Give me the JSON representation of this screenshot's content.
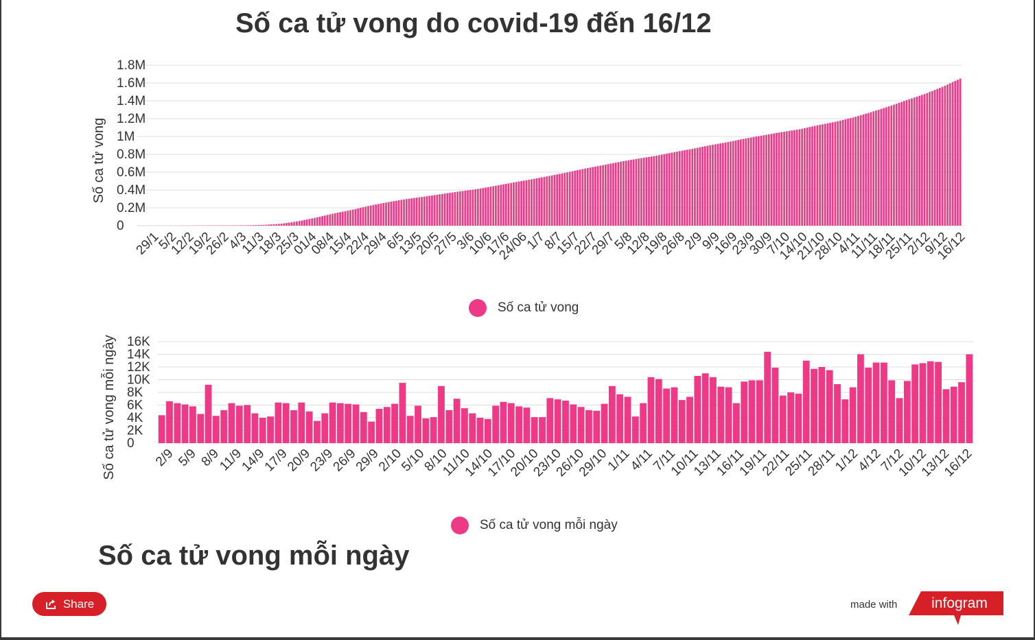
{
  "title": "Số ca tử vong do covid-19 đến 16/12",
  "section_title": "Số ca tử vong mỗi ngày",
  "footer": {
    "share_label": "Share",
    "made_with": "made with",
    "brand": "infogram"
  },
  "colors": {
    "bar": "#ee3a86",
    "grid": "#dddddd",
    "text": "#333333",
    "brand_red": "#d61f26"
  },
  "icons": [
    "share-icon",
    "infogram-logo"
  ],
  "chart_data": [
    {
      "type": "bar",
      "ylabel": "Số ca tử vong",
      "legend": [
        "Số ca tử vong"
      ],
      "legend_position": "bottom",
      "grid": true,
      "ylim": [
        0,
        1800000
      ],
      "yticks": [
        "0",
        "0.2M",
        "0.4M",
        "0.6M",
        "0.8M",
        "1M",
        "1.2M",
        "1.4M",
        "1.6M",
        "1.8M"
      ],
      "xticks": [
        "29/1",
        "5/2",
        "12/2",
        "19/2",
        "26/2",
        "4/3",
        "11/3",
        "18/3",
        "25/3",
        "01/4",
        "08/4",
        "15/4",
        "22/4",
        "29/4",
        "6/5",
        "13/5",
        "20/5",
        "27/5",
        "3/6",
        "10/6",
        "17/6",
        "24/06",
        "1/7",
        "8/7",
        "15/7",
        "22/7",
        "29/7",
        "5/8",
        "12/8",
        "19/8",
        "26/8",
        "2/9",
        "9/9",
        "16/9",
        "23/9",
        "30/9",
        "7/10",
        "14/10",
        "21/10",
        "28/10",
        "4/11",
        "11/11",
        "18/11",
        "25/11",
        "2/12",
        "9/12",
        "16/12"
      ],
      "series": [
        {
          "name": "Số ca tử vong",
          "x": [
            "29/1",
            "5/2",
            "12/2",
            "19/2",
            "26/2",
            "4/3",
            "11/3",
            "18/3",
            "25/3",
            "01/4",
            "08/4",
            "15/4",
            "22/4",
            "29/4",
            "6/5",
            "13/5",
            "20/5",
            "27/5",
            "3/6",
            "10/6",
            "17/6",
            "24/06",
            "1/7",
            "8/7",
            "15/7",
            "22/7",
            "29/7",
            "5/8",
            "12/8",
            "19/8",
            "26/8",
            "2/9",
            "9/9",
            "16/9",
            "23/9",
            "30/9",
            "7/10",
            "14/10",
            "21/10",
            "28/10",
            "4/11",
            "11/11",
            "18/11",
            "25/11",
            "2/12",
            "9/12",
            "16/12"
          ],
          "values": [
            200,
            500,
            1100,
            2100,
            2800,
            3300,
            4600,
            9000,
            22000,
            52000,
            94000,
            140000,
            180000,
            227000,
            265000,
            299000,
            326000,
            356000,
            385000,
            412000,
            448000,
            485000,
            520000,
            558000,
            598000,
            641000,
            679000,
            718000,
            753000,
            785000,
            825000,
            862000,
            902000,
            938000,
            979000,
            1014000,
            1050000,
            1081000,
            1125000,
            1165000,
            1213000,
            1273000,
            1337000,
            1408000,
            1476000,
            1557000,
            1650000
          ]
        }
      ]
    },
    {
      "type": "bar",
      "ylabel": "Số ca tử vong mỗi ngày",
      "legend": [
        "Số ca tử vong mỗi ngày"
      ],
      "legend_position": "bottom",
      "grid": true,
      "ylim": [
        0,
        16000
      ],
      "yticks": [
        "0",
        "2K",
        "4K",
        "6K",
        "8K",
        "10K",
        "12K",
        "14K",
        "16K"
      ],
      "xticks": [
        "2/9",
        "5/9",
        "8/9",
        "11/9",
        "14/9",
        "17/9",
        "20/9",
        "23/9",
        "26/9",
        "29/9",
        "2/10",
        "5/10",
        "8/10",
        "11/10",
        "14/10",
        "17/10",
        "20/10",
        "23/10",
        "26/10",
        "29/10",
        "1/11",
        "4/11",
        "7/11",
        "10/11",
        "13/11",
        "16/11",
        "19/11",
        "22/11",
        "25/11",
        "28/11",
        "1/12",
        "4/12",
        "7/12",
        "10/12",
        "13/12",
        "16/12"
      ],
      "series": [
        {
          "name": "Số ca tử vong mỗi ngày",
          "x_start": "1/9",
          "x_end": "16/12",
          "values": [
            4400,
            6600,
            6300,
            6100,
            5800,
            4600,
            9200,
            4300,
            5200,
            6300,
            5900,
            6000,
            4700,
            4000,
            4200,
            6400,
            6300,
            5200,
            6400,
            5000,
            3500,
            4700,
            6400,
            6300,
            6200,
            6100,
            4900,
            3400,
            5400,
            5700,
            6200,
            9500,
            4300,
            5900,
            3900,
            4100,
            9000,
            5200,
            7000,
            5500,
            4700,
            4000,
            3800,
            5900,
            6500,
            6300,
            5800,
            5600,
            4100,
            4100,
            7100,
            6900,
            6700,
            6100,
            5700,
            5200,
            5100,
            6200,
            9000,
            7700,
            7300,
            4200,
            6300,
            10400,
            10100,
            8600,
            8800,
            6800,
            7300,
            10600,
            11000,
            10400,
            8900,
            8800,
            6300,
            9700,
            9900,
            9900,
            14400,
            11900,
            7500,
            8000,
            7800,
            13000,
            11700,
            12000,
            11500,
            9300,
            6900,
            8800,
            14000,
            11900,
            12700,
            12700,
            9900,
            7100,
            9800,
            12400,
            12600,
            12900,
            12800,
            8500,
            8900,
            9600,
            14000
          ]
        }
      ]
    }
  ]
}
